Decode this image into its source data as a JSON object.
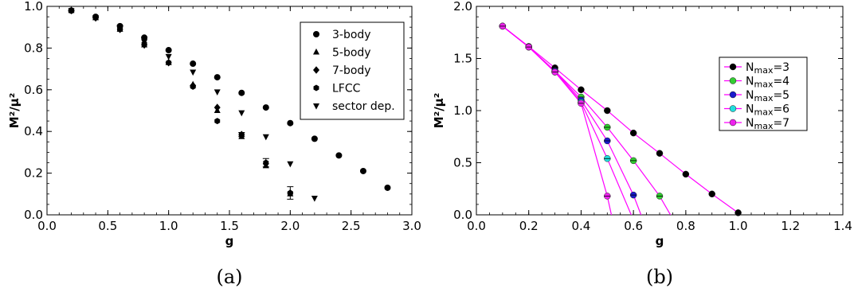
{
  "chart_data": [
    {
      "type": "scatter",
      "caption": "(a)",
      "xlabel": "g",
      "ylabel": "M²/μ²",
      "xlim": [
        0.0,
        3.0
      ],
      "ylim": [
        0.0,
        1.0
      ],
      "xticks": [
        "0.0",
        "0.5",
        "1.0",
        "1.5",
        "2.0",
        "2.5",
        "3.0"
      ],
      "yticks": [
        "0.0",
        "0.2",
        "0.4",
        "0.6",
        "0.8",
        "1.0"
      ],
      "legend_position": "top-right",
      "grid": false,
      "series": [
        {
          "name": "3-body",
          "marker": "circle",
          "x": [
            0.2,
            0.4,
            0.6,
            0.8,
            1.0,
            1.2,
            1.4,
            1.6,
            1.8,
            2.0,
            2.2,
            2.4,
            2.6,
            2.8
          ],
          "y": [
            0.98,
            0.95,
            0.905,
            0.85,
            0.79,
            0.725,
            0.66,
            0.585,
            0.515,
            0.44,
            0.365,
            0.285,
            0.21,
            0.13
          ]
        },
        {
          "name": "5-body",
          "marker": "triangle-up",
          "x": [
            0.2,
            0.4,
            0.6,
            0.8,
            1.0,
            1.2,
            1.4,
            1.6,
            1.8,
            2.0
          ],
          "y": [
            0.98,
            0.945,
            0.89,
            0.815,
            0.73,
            0.625,
            0.5,
            0.375,
            0.235,
            0.1
          ]
        },
        {
          "name": "7-body",
          "marker": "diamond",
          "x": [
            0.2,
            0.4,
            0.6,
            0.8,
            1.0,
            1.2,
            1.4,
            1.6,
            1.8,
            2.0
          ],
          "y": [
            0.98,
            0.945,
            0.89,
            0.815,
            0.73,
            0.62,
            0.515,
            0.385,
            0.245,
            0.105
          ]
        },
        {
          "name": "LFCC",
          "marker": "hexagon",
          "x": [
            0.2,
            0.4,
            0.6,
            0.8,
            1.0,
            1.2,
            1.4,
            1.6,
            1.8,
            2.0
          ],
          "y": [
            0.98,
            0.945,
            0.89,
            0.82,
            0.73,
            0.615,
            0.45,
            0.385,
            0.25,
            0.105
          ],
          "yerr": [
            0,
            0,
            0,
            0,
            0,
            0,
            0,
            0.01,
            0.02,
            0.03
          ]
        },
        {
          "name": "sector dep.",
          "marker": "triangle-down",
          "x": [
            0.2,
            0.4,
            0.6,
            0.8,
            1.0,
            1.2,
            1.4,
            1.6,
            1.8,
            2.0,
            2.2
          ],
          "y": [
            0.98,
            0.945,
            0.9,
            0.83,
            0.76,
            0.685,
            0.59,
            0.49,
            0.375,
            0.245,
            0.08
          ]
        }
      ]
    },
    {
      "type": "line",
      "caption": "(b)",
      "xlabel": "g",
      "ylabel": "M²/μ²",
      "xlim": [
        0.0,
        1.4
      ],
      "ylim": [
        0.0,
        2.0
      ],
      "xticks": [
        "0.0",
        "0.2",
        "0.4",
        "0.6",
        "0.8",
        "1.0",
        "1.2",
        "1.4"
      ],
      "yticks": [
        "0.0",
        "0.5",
        "1.0",
        "1.5",
        "2.0"
      ],
      "legend_position": "top-right",
      "grid": false,
      "line_color": "#ff00ff",
      "series": [
        {
          "name": "N",
          "sub": "max",
          "suffix": "=3",
          "color": "#000000",
          "x": [
            0.1,
            0.2,
            0.3,
            0.4,
            0.5,
            0.6,
            0.7,
            0.8,
            0.9,
            1.0
          ],
          "y": [
            1.81,
            1.615,
            1.41,
            1.2,
            1.0,
            0.785,
            0.59,
            0.39,
            0.2,
            0.02
          ]
        },
        {
          "name": "N",
          "sub": "max",
          "suffix": "=4",
          "color": "#33cc33",
          "x": [
            0.1,
            0.2,
            0.3,
            0.4,
            0.5,
            0.6,
            0.7
          ],
          "y": [
            1.81,
            1.61,
            1.38,
            1.13,
            0.84,
            0.52,
            0.18
          ]
        },
        {
          "name": "N",
          "sub": "max",
          "suffix": "=5",
          "color": "#1a1acc",
          "x": [
            0.1,
            0.2,
            0.3,
            0.4,
            0.5,
            0.6
          ],
          "y": [
            1.81,
            1.61,
            1.38,
            1.1,
            0.71,
            0.19
          ]
        },
        {
          "name": "N",
          "sub": "max",
          "suffix": "=6",
          "color": "#22dddd",
          "x": [
            0.1,
            0.2,
            0.3,
            0.4,
            0.5
          ],
          "y": [
            1.81,
            1.61,
            1.37,
            1.08,
            0.54
          ]
        },
        {
          "name": "N",
          "sub": "max",
          "suffix": "=7",
          "color": "#ee22ee",
          "x": [
            0.1,
            0.2,
            0.3,
            0.4,
            0.5
          ],
          "y": [
            1.81,
            1.61,
            1.37,
            1.07,
            0.18
          ]
        }
      ]
    }
  ]
}
